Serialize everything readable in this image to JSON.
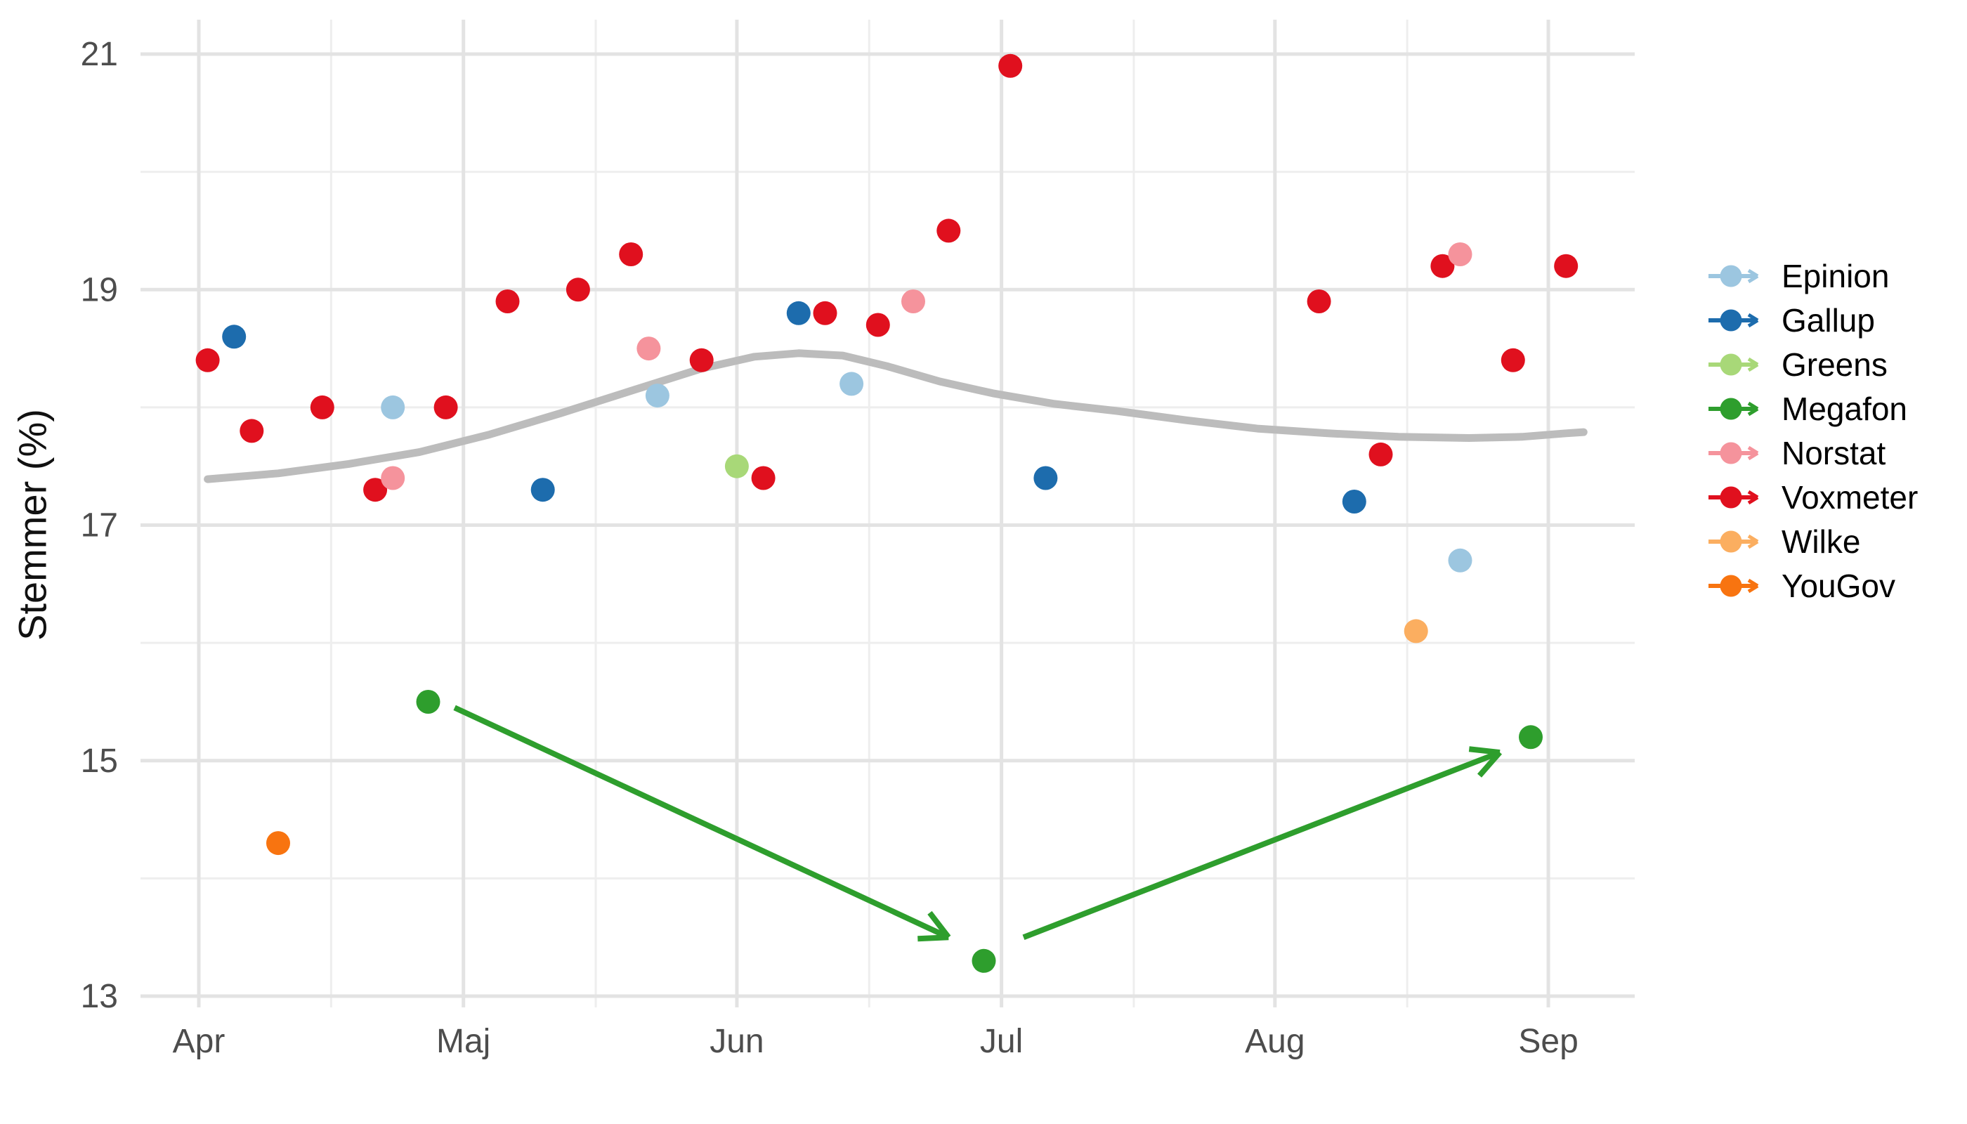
{
  "chart_data": {
    "type": "scatter",
    "title": "",
    "xlabel": "",
    "ylabel": "Stemmer (%)",
    "ylim": [
      12.9,
      21.3
    ],
    "xlim_days": [
      -6.6,
      162.8
    ],
    "grid": "major+minor",
    "legend_position": "right",
    "y_ticks": [
      21,
      19,
      17,
      15,
      13
    ],
    "y_minor": [
      20,
      18,
      16,
      14
    ],
    "x_ticks": [
      {
        "label": "Apr",
        "d": 0
      },
      {
        "label": "Maj",
        "d": 30
      },
      {
        "label": "Jun",
        "d": 61
      },
      {
        "label": "Jul",
        "d": 91
      },
      {
        "label": "Aug",
        "d": 122
      },
      {
        "label": "Sep",
        "d": 153
      }
    ],
    "x_minor_days": [
      15,
      45,
      76,
      106,
      137
    ],
    "series": [
      {
        "name": "Epinion",
        "color": "#9cc6e0",
        "z": 1,
        "points": [
          {
            "date": "Apr 23",
            "d": 22,
            "v": 18.0
          },
          {
            "date": "Maj 23",
            "d": 52,
            "v": 18.1
          },
          {
            "date": "Jun 14",
            "d": 74,
            "v": 18.2
          },
          {
            "date": "Aug 22",
            "d": 143,
            "v": 16.7
          }
        ]
      },
      {
        "name": "Gallup",
        "color": "#1d6cad",
        "z": 2,
        "points": [
          {
            "date": "Apr 5",
            "d": 4,
            "v": 18.6
          },
          {
            "date": "Maj 10",
            "d": 39,
            "v": 17.3
          },
          {
            "date": "Jun 8",
            "d": 68,
            "v": 18.8
          },
          {
            "date": "Jul 6",
            "d": 96,
            "v": 17.4
          },
          {
            "date": "Aug 10",
            "d": 131,
            "v": 17.2
          }
        ]
      },
      {
        "name": "Greens",
        "color": "#a8d878",
        "z": 3,
        "points": [
          {
            "date": "Jun 1",
            "d": 61,
            "v": 17.5
          }
        ]
      },
      {
        "name": "Megafon",
        "color": "#2e9e2d",
        "z": 4,
        "points": [
          {
            "date": "Apr 27",
            "d": 26,
            "v": 15.5
          },
          {
            "date": "Jun 29",
            "d": 89,
            "v": 13.3
          },
          {
            "date": "Aug 30",
            "d": 151,
            "v": 15.2
          }
        ]
      },
      {
        "name": "Norstat",
        "color": "#f5939c",
        "z": 6,
        "points": [
          {
            "date": "Apr 23",
            "d": 22,
            "v": 17.4
          },
          {
            "date": "Maj 22",
            "d": 51,
            "v": 18.5
          },
          {
            "date": "Jun 21",
            "d": 81,
            "v": 18.9
          },
          {
            "date": "Aug 22",
            "d": 143,
            "v": 19.3
          }
        ]
      },
      {
        "name": "Voxmeter",
        "color": "#e0101e",
        "z": 5,
        "points": [
          {
            "date": "Apr 2",
            "d": 1,
            "v": 18.4
          },
          {
            "date": "Apr 7",
            "d": 6,
            "v": 17.8
          },
          {
            "date": "Apr 15",
            "d": 14,
            "v": 18.0
          },
          {
            "date": "Apr 21",
            "d": 20,
            "v": 17.3
          },
          {
            "date": "Apr 29",
            "d": 28,
            "v": 18.0
          },
          {
            "date": "Maj 6",
            "d": 35,
            "v": 18.9
          },
          {
            "date": "Maj 14",
            "d": 43,
            "v": 19.0
          },
          {
            "date": "Maj 20",
            "d": 49,
            "v": 19.3
          },
          {
            "date": "Maj 28",
            "d": 57,
            "v": 18.4
          },
          {
            "date": "Jun 4",
            "d": 64,
            "v": 17.4
          },
          {
            "date": "Jun 11",
            "d": 71,
            "v": 18.8
          },
          {
            "date": "Jun 17",
            "d": 77,
            "v": 18.7
          },
          {
            "date": "Jun 25",
            "d": 85,
            "v": 19.5
          },
          {
            "date": "Jul 2",
            "d": 92,
            "v": 20.9
          },
          {
            "date": "Aug 6",
            "d": 127,
            "v": 18.9
          },
          {
            "date": "Aug 13",
            "d": 134,
            "v": 17.6
          },
          {
            "date": "Aug 20",
            "d": 141,
            "v": 19.2
          },
          {
            "date": "Aug 28",
            "d": 149,
            "v": 18.4
          },
          {
            "date": "Sep 3",
            "d": 155,
            "v": 19.2
          }
        ]
      },
      {
        "name": "Wilke",
        "color": "#fbae60",
        "z": 7,
        "points": [
          {
            "date": "Aug 17",
            "d": 138,
            "v": 16.1
          }
        ]
      },
      {
        "name": "YouGov",
        "color": "#f87410",
        "z": 8,
        "points": [
          {
            "date": "Apr 10",
            "d": 9,
            "v": 14.3
          }
        ]
      }
    ],
    "smooth_line": {
      "color": "#bcbcbc",
      "points": [
        {
          "d": 1,
          "v": 17.39
        },
        {
          "d": 9,
          "v": 17.44
        },
        {
          "d": 17,
          "v": 17.52
        },
        {
          "d": 25,
          "v": 17.62
        },
        {
          "d": 33,
          "v": 17.77
        },
        {
          "d": 41,
          "v": 17.95
        },
        {
          "d": 49,
          "v": 18.14
        },
        {
          "d": 57,
          "v": 18.33
        },
        {
          "d": 63,
          "v": 18.43
        },
        {
          "d": 68,
          "v": 18.46
        },
        {
          "d": 73,
          "v": 18.44
        },
        {
          "d": 78,
          "v": 18.35
        },
        {
          "d": 84,
          "v": 18.22
        },
        {
          "d": 90,
          "v": 18.12
        },
        {
          "d": 97,
          "v": 18.03
        },
        {
          "d": 104,
          "v": 17.97
        },
        {
          "d": 112,
          "v": 17.89
        },
        {
          "d": 120,
          "v": 17.82
        },
        {
          "d": 128,
          "v": 17.78
        },
        {
          "d": 136,
          "v": 17.75
        },
        {
          "d": 144,
          "v": 17.74
        },
        {
          "d": 150,
          "v": 17.75
        },
        {
          "d": 155,
          "v": 17.78
        },
        {
          "d": 157,
          "v": 17.79
        }
      ]
    },
    "arrows": [
      {
        "color": "#2e9e2d",
        "from": {
          "d": 29.0,
          "v": 15.45
        },
        "to": {
          "d": 85.0,
          "v": 13.5
        }
      },
      {
        "color": "#2e9e2d",
        "from": {
          "d": 93.5,
          "v": 13.5
        },
        "to": {
          "d": 147.5,
          "v": 15.07
        }
      }
    ]
  },
  "legend": {
    "entries": [
      "Epinion",
      "Gallup",
      "Greens",
      "Megafon",
      "Norstat",
      "Voxmeter",
      "Wilke",
      "YouGov"
    ]
  }
}
